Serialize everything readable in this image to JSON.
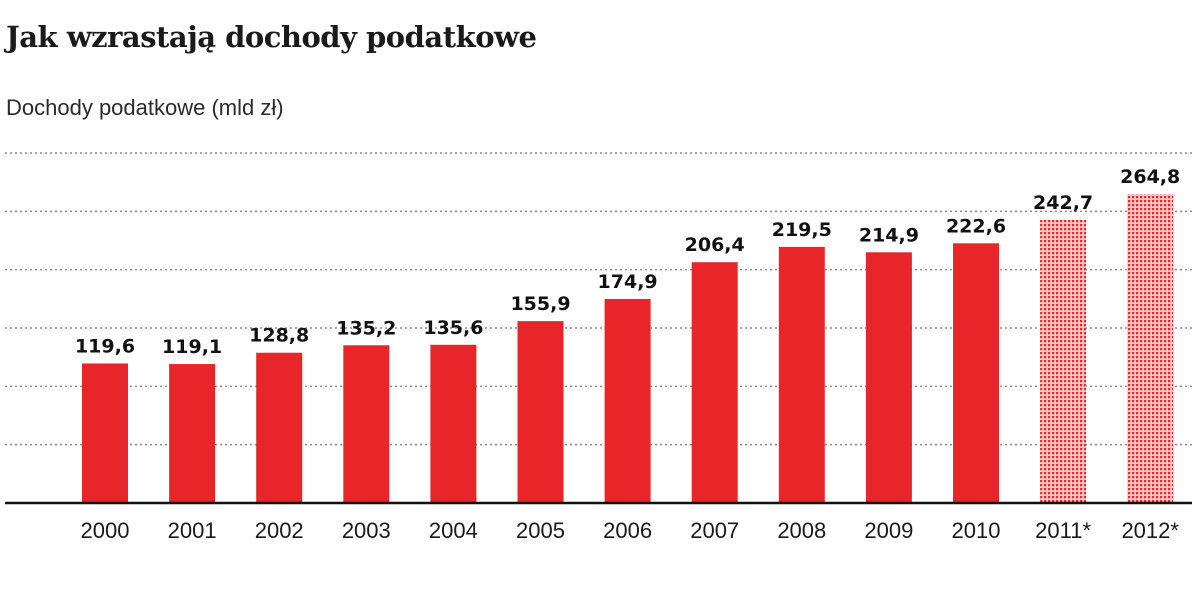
{
  "title": "Jak wzrastają dochody podatkowe",
  "subtitle": "Dochody podatkowe (mld zł)",
  "colors": {
    "bar": "#e8262a",
    "forecast": "#e8262a",
    "grid": "#8a8a8a",
    "axis": "#111111"
  },
  "chart_data": {
    "type": "bar",
    "categories": [
      "2000",
      "2001",
      "2002",
      "2003",
      "2004",
      "2005",
      "2006",
      "2007",
      "2008",
      "2009",
      "2010",
      "2011*",
      "2012*"
    ],
    "values": [
      119.6,
      119.1,
      128.8,
      135.2,
      135.6,
      155.9,
      174.9,
      206.4,
      219.5,
      214.9,
      222.6,
      242.7,
      264.8
    ],
    "value_labels": [
      "119,6",
      "119,1",
      "128,8",
      "135,2",
      "135,6",
      "155,9",
      "174,9",
      "206,4",
      "219,5",
      "214,9",
      "222,6",
      "242,7",
      "264,8"
    ],
    "forecast": [
      false,
      false,
      false,
      false,
      false,
      false,
      false,
      false,
      false,
      false,
      false,
      true,
      true
    ],
    "ylim": [
      0,
      300
    ],
    "grid": true,
    "xlabel": "",
    "ylabel": ""
  }
}
